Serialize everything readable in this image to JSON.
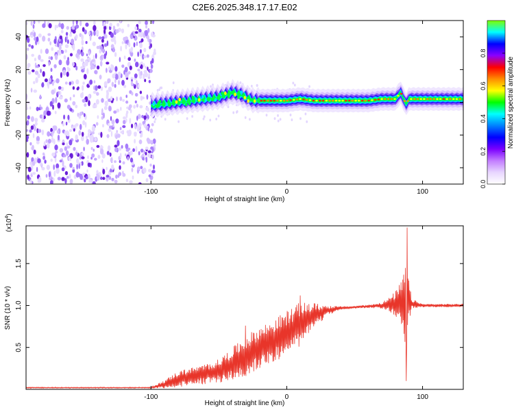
{
  "title": "C2E6.2025.348.17.17.E02",
  "colors": {
    "snr_line": "#e8352a",
    "axis": "#000000",
    "purple_dark": "#6a1fd8",
    "purple_light": "#d7c2ff"
  },
  "chart_data": [
    {
      "type": "heatmap",
      "name": "spectrogram",
      "xlabel": "Height of straight line (km)",
      "ylabel": "Frequency (Hz)",
      "xlim": [
        -192,
        130
      ],
      "ylim": [
        -50,
        50
      ],
      "x_ticks": [
        -100,
        0,
        100
      ],
      "x_tick_labels": [
        "-100",
        "0",
        "100"
      ],
      "y_ticks": [
        -40,
        -20,
        0,
        20,
        40
      ],
      "y_tick_labels": [
        "-40",
        "-20",
        "0",
        "20",
        "40"
      ],
      "colorbar": {
        "label": "Normalized spectral amplitude",
        "range": [
          0.0,
          1.0
        ],
        "ticks": [
          0.0,
          0.2,
          0.4,
          0.6,
          0.8
        ],
        "tick_labels": [
          "0.0",
          "0.2",
          "0.4",
          "0.6",
          "0.8"
        ],
        "stops": [
          "#7fff00",
          "#00ffff",
          "#0000ff",
          "#8b00ff",
          "#ff0000",
          "#ff8c00",
          "#ffff00",
          "#00ff00",
          "#00ffff",
          "#0080ff",
          "#0000ff",
          "#7b00ff",
          "#c27dff",
          "#e8d6ff",
          "#ffffff"
        ]
      },
      "noise_region_x": [
        -192,
        -100
      ],
      "ridge": {
        "x": [
          -100,
          -90,
          -80,
          -70,
          -60,
          -50,
          -40,
          -35,
          -30,
          -25,
          -20,
          -10,
          0,
          10,
          20,
          30,
          40,
          50,
          60,
          70,
          80,
          84,
          86,
          88,
          90,
          100,
          110,
          120,
          130
        ],
        "y": [
          -2,
          -1,
          0,
          1,
          2,
          3,
          6,
          5,
          3,
          1,
          1,
          1,
          1,
          2,
          1,
          1,
          1,
          1,
          1,
          2,
          2,
          6,
          2,
          -1,
          2,
          2,
          2,
          2,
          2
        ]
      }
    },
    {
      "type": "line",
      "name": "snr",
      "xlabel": "Height of straight line (km)",
      "ylabel": "SNR (10 * v/v)",
      "multiplier_label": "(x10",
      "multiplier_exp": "4",
      "multiplier_close": ")",
      "xlim": [
        -192,
        130
      ],
      "ylim": [
        0,
        1.95
      ],
      "x_ticks": [
        -100,
        0,
        100
      ],
      "x_tick_labels": [
        "-100",
        "0",
        "100"
      ],
      "y_ticks": [
        0.5,
        1.0,
        1.5
      ],
      "y_tick_labels": [
        "0.5",
        "1.0",
        "1.5"
      ],
      "baseline": {
        "x": [
          -192,
          -100,
          -90,
          -80,
          -70,
          -60,
          -50,
          -40,
          -30,
          -20,
          -10,
          0,
          10,
          20,
          30,
          40,
          50,
          60,
          70,
          80,
          85,
          88,
          90,
          92,
          100,
          110,
          120,
          130
        ],
        "y": [
          0.02,
          0.02,
          0.06,
          0.12,
          0.16,
          0.18,
          0.22,
          0.3,
          0.4,
          0.5,
          0.58,
          0.66,
          0.78,
          0.88,
          0.94,
          0.97,
          0.98,
          0.99,
          1.0,
          1.02,
          1.03,
          1.0,
          1.05,
          1.02,
          1.0,
          1.0,
          1.0,
          1.0
        ]
      },
      "amplitude": {
        "x": [
          -192,
          -100,
          -90,
          -80,
          -70,
          -60,
          -50,
          -40,
          -30,
          -20,
          -10,
          0,
          10,
          20,
          30,
          40,
          50,
          60,
          70,
          75,
          80,
          85,
          88,
          90,
          92,
          100,
          130
        ],
        "y": [
          0.006,
          0.006,
          0.05,
          0.1,
          0.1,
          0.12,
          0.14,
          0.2,
          0.24,
          0.25,
          0.25,
          0.28,
          0.26,
          0.15,
          0.06,
          0.02,
          0.015,
          0.02,
          0.04,
          0.08,
          0.15,
          0.28,
          0.55,
          0.25,
          0.06,
          0.02,
          0.02
        ]
      },
      "peaks": [
        {
          "x": 88.5,
          "y": 1.93
        },
        {
          "x": 88.0,
          "y": 0.1
        },
        {
          "x": 10.0,
          "y": 1.12
        },
        {
          "x": -30.5,
          "y": 0.76
        }
      ]
    }
  ]
}
